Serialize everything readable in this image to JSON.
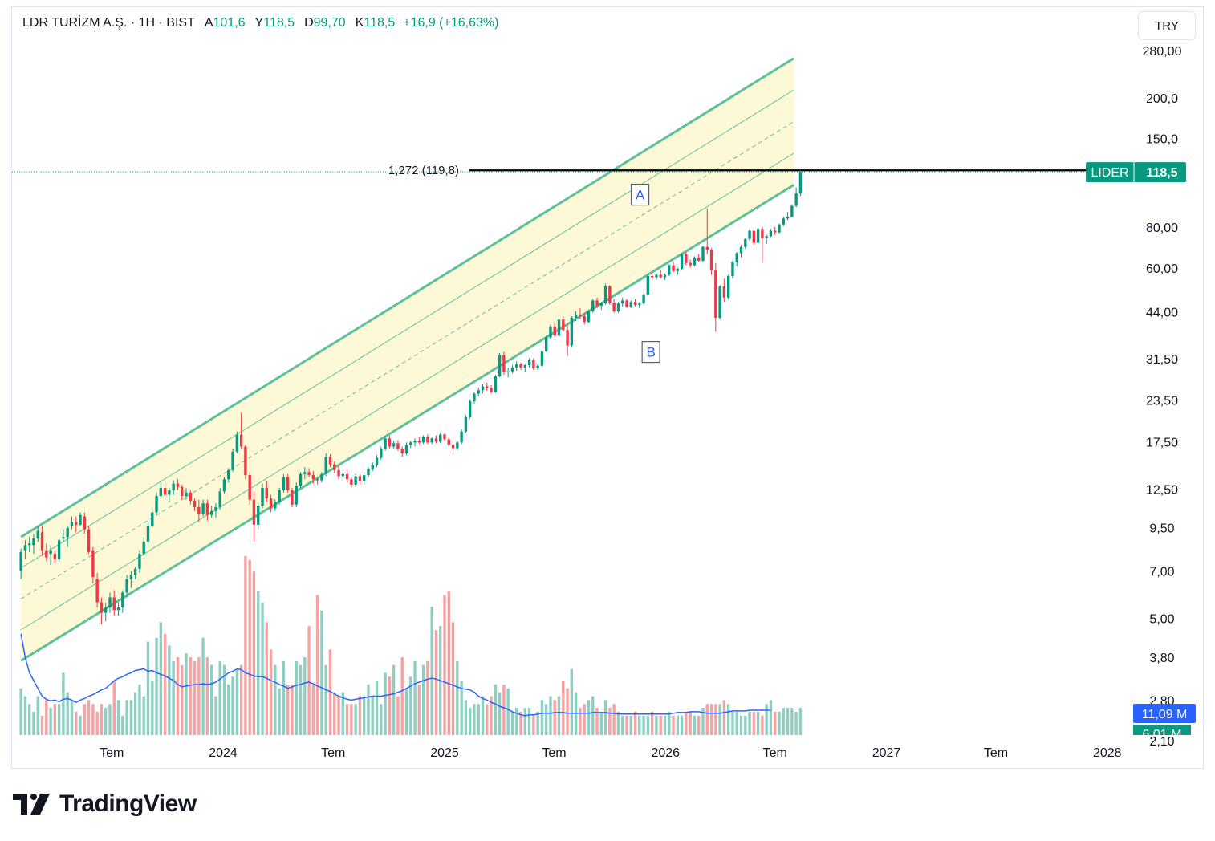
{
  "header": {
    "symbol": "LDR TURİZM A.Ş. · 1H · BIST",
    "open_label": "A",
    "open": "101,6",
    "high_label": "Y",
    "high": "118,5",
    "low_label": "D",
    "low": "99,70",
    "close_label": "K",
    "close": "118,5",
    "change": "+16,9 (+16,63%)",
    "currency": "TRY"
  },
  "price_tag": {
    "label": "LIDER",
    "value": "118,5",
    "color": "#089981"
  },
  "fib_label": "1,272 (119,8)",
  "annotations": {
    "a": "A",
    "b": "B"
  },
  "volume_tags": {
    "ma": "11,09 M",
    "volume": "6,01 M"
  },
  "brand": "TradingView",
  "colors": {
    "up": "#089981",
    "down": "#f23645",
    "channel_line": "#5fc19b",
    "channel_fill": "#fdf8d5",
    "volume_up": "#8fcfc2",
    "volume_down": "#f5a3a3",
    "volume_ma": "#2962ff",
    "text_blue": "#2962ff"
  },
  "chart_data": {
    "type": "candlestick",
    "timeframe": "1 week",
    "price_scale": "log",
    "y_ticks": [
      "280,00",
      "200,0",
      "150,0",
      "80,00",
      "60,00",
      "44,00",
      "31,50",
      "23,50",
      "17,50",
      "12,50",
      "9,50",
      "7,00",
      "5,00",
      "3,80",
      "2,80",
      "2,10"
    ],
    "y_tick_values": [
      280,
      200,
      150,
      80,
      60,
      44,
      31.5,
      23.5,
      17.5,
      12.5,
      9.5,
      7,
      5,
      3.8,
      2.8,
      2.1
    ],
    "x_ticks": [
      "Tem",
      "2024",
      "Tem",
      "2025",
      "Tem",
      "2026",
      "Tem",
      "2027",
      "Tem",
      "2028"
    ],
    "x_tick_dates": [
      "2023-07-01",
      "2024-01-01",
      "2024-07-01",
      "2025-01-01",
      "2025-07-01",
      "2026-01-01",
      "2026-07-01",
      "2027-01-01",
      "2027-07-01",
      "2028-01-01"
    ],
    "start_date": "2023-02-01",
    "candles": [
      [
        7.0,
        8.2,
        6.6,
        8.0
      ],
      [
        8.1,
        8.7,
        7.6,
        8.4
      ],
      [
        8.4,
        8.9,
        8.0,
        8.5
      ],
      [
        8.4,
        9.1,
        7.9,
        8.8
      ],
      [
        8.8,
        9.6,
        8.6,
        9.3
      ],
      [
        9.2,
        9.6,
        7.8,
        8.1
      ],
      [
        8.1,
        8.5,
        7.5,
        7.7
      ],
      [
        7.9,
        8.4,
        7.3,
        8.1
      ],
      [
        7.9,
        8.1,
        7.4,
        7.6
      ],
      [
        7.6,
        8.9,
        7.5,
        8.7
      ],
      [
        8.8,
        9.4,
        8.6,
        8.9
      ],
      [
        8.9,
        9.6,
        8.3,
        9.5
      ],
      [
        9.6,
        10.3,
        9.4,
        9.9
      ],
      [
        9.9,
        10.3,
        9.2,
        9.7
      ],
      [
        9.7,
        10.6,
        9.6,
        10.4
      ],
      [
        10.3,
        10.6,
        9.1,
        9.4
      ],
      [
        9.4,
        9.6,
        7.9,
        8.0
      ],
      [
        8.1,
        8.3,
        6.4,
        6.7
      ],
      [
        6.6,
        6.9,
        5.4,
        5.6
      ],
      [
        5.6,
        5.8,
        4.8,
        5.2
      ],
      [
        5.2,
        5.6,
        4.9,
        5.4
      ],
      [
        5.4,
        6.0,
        5.2,
        5.8
      ],
      [
        5.8,
        6.1,
        5.1,
        5.3
      ],
      [
        5.3,
        5.6,
        5.1,
        5.4
      ],
      [
        5.4,
        6.1,
        5.2,
        6.0
      ],
      [
        6.0,
        6.8,
        5.8,
        6.6
      ],
      [
        6.6,
        7.0,
        6.2,
        6.8
      ],
      [
        6.8,
        7.2,
        6.6,
        7.1
      ],
      [
        7.1,
        8.1,
        6.9,
        7.9
      ],
      [
        7.9,
        8.9,
        7.8,
        8.6
      ],
      [
        8.6,
        9.9,
        8.5,
        9.6
      ],
      [
        9.6,
        10.9,
        9.5,
        10.6
      ],
      [
        10.6,
        12.2,
        10.4,
        11.9
      ],
      [
        11.9,
        13.1,
        11.7,
        12.6
      ],
      [
        12.6,
        13.2,
        11.6,
        12.0
      ],
      [
        12.0,
        12.6,
        11.4,
        12.4
      ],
      [
        12.4,
        13.3,
        12.0,
        13.0
      ],
      [
        13.0,
        13.4,
        12.4,
        12.7
      ],
      [
        12.7,
        12.9,
        11.6,
        11.9
      ],
      [
        11.9,
        12.6,
        11.6,
        12.2
      ],
      [
        12.2,
        12.4,
        11.2,
        11.5
      ],
      [
        11.5,
        11.7,
        10.7,
        11.0
      ],
      [
        11.0,
        11.6,
        9.9,
        10.5
      ],
      [
        10.5,
        11.6,
        10.3,
        11.3
      ],
      [
        11.3,
        11.6,
        10.0,
        10.4
      ],
      [
        10.4,
        11.1,
        10.2,
        10.7
      ],
      [
        10.7,
        11.3,
        10.2,
        11.0
      ],
      [
        11.0,
        12.6,
        10.8,
        12.3
      ],
      [
        12.3,
        13.6,
        12.1,
        13.4
      ],
      [
        13.4,
        14.5,
        13.1,
        14.3
      ],
      [
        14.3,
        16.6,
        14.1,
        16.3
      ],
      [
        16.3,
        18.8,
        16.1,
        18.4
      ],
      [
        18.4,
        21.5,
        16.6,
        16.9
      ],
      [
        16.9,
        17.1,
        13.4,
        13.8
      ],
      [
        13.8,
        14.1,
        11.2,
        11.6
      ],
      [
        11.6,
        12.3,
        8.6,
        9.7
      ],
      [
        9.7,
        11.3,
        9.4,
        11.1
      ],
      [
        11.1,
        13.0,
        10.9,
        12.6
      ],
      [
        12.6,
        13.2,
        11.4,
        11.7
      ],
      [
        11.7,
        12.0,
        10.6,
        10.9
      ],
      [
        10.9,
        11.6,
        10.7,
        11.4
      ],
      [
        11.4,
        12.6,
        11.2,
        12.4
      ],
      [
        12.4,
        13.9,
        12.2,
        13.6
      ],
      [
        13.6,
        13.9,
        12.2,
        12.4
      ],
      [
        12.4,
        12.6,
        11.0,
        11.2
      ],
      [
        11.2,
        13.1,
        11.0,
        12.8
      ],
      [
        12.8,
        14.1,
        12.6,
        13.9
      ],
      [
        13.9,
        14.6,
        13.4,
        14.1
      ],
      [
        14.1,
        14.5,
        13.6,
        13.8
      ],
      [
        13.8,
        14.2,
        13.0,
        13.4
      ],
      [
        13.4,
        13.6,
        12.9,
        13.3
      ],
      [
        13.3,
        14.1,
        13.1,
        13.9
      ],
      [
        13.9,
        16.1,
        13.7,
        15.7
      ],
      [
        15.7,
        16.0,
        14.6,
        14.9
      ],
      [
        14.9,
        15.2,
        14.0,
        14.3
      ],
      [
        14.3,
        14.7,
        13.4,
        13.7
      ],
      [
        13.7,
        14.1,
        13.2,
        13.9
      ],
      [
        13.9,
        14.3,
        13.1,
        13.4
      ],
      [
        13.4,
        13.6,
        12.6,
        12.9
      ],
      [
        12.9,
        13.9,
        12.7,
        13.7
      ],
      [
        13.7,
        13.9,
        12.9,
        13.2
      ],
      [
        13.2,
        14.1,
        12.9,
        13.8
      ],
      [
        13.8,
        14.6,
        13.6,
        14.4
      ],
      [
        14.4,
        15.1,
        14.2,
        14.8
      ],
      [
        14.8,
        15.9,
        14.6,
        15.6
      ],
      [
        15.6,
        16.9,
        15.4,
        16.6
      ],
      [
        16.6,
        18.2,
        16.4,
        17.9
      ],
      [
        17.9,
        18.3,
        16.6,
        16.9
      ],
      [
        16.9,
        17.6,
        16.6,
        17.3
      ],
      [
        17.3,
        17.7,
        16.4,
        16.6
      ],
      [
        16.6,
        16.9,
        15.7,
        16.1
      ],
      [
        16.1,
        17.4,
        15.9,
        17.1
      ],
      [
        17.1,
        17.6,
        16.7,
        17.4
      ],
      [
        17.4,
        17.9,
        16.9,
        17.6
      ],
      [
        17.6,
        18.1,
        17.2,
        17.4
      ],
      [
        17.4,
        18.3,
        17.2,
        18.1
      ],
      [
        18.1,
        18.4,
        17.2,
        17.4
      ],
      [
        17.4,
        18.1,
        17.2,
        17.9
      ],
      [
        17.9,
        18.3,
        17.3,
        17.5
      ],
      [
        17.5,
        18.6,
        17.3,
        18.4
      ],
      [
        18.4,
        18.6,
        17.6,
        17.8
      ],
      [
        17.8,
        18.1,
        16.9,
        17.1
      ],
      [
        17.1,
        17.3,
        16.4,
        16.7
      ],
      [
        16.7,
        17.6,
        16.5,
        17.4
      ],
      [
        17.4,
        19.1,
        17.2,
        18.8
      ],
      [
        18.8,
        21.1,
        18.6,
        20.8
      ],
      [
        20.8,
        23.6,
        20.6,
        23.3
      ],
      [
        23.3,
        24.9,
        22.9,
        24.6
      ],
      [
        24.6,
        25.7,
        24.1,
        25.2
      ],
      [
        25.2,
        26.3,
        24.6,
        25.9
      ],
      [
        25.9,
        26.6,
        25.1,
        25.6
      ],
      [
        25.6,
        26.1,
        24.6,
        24.9
      ],
      [
        24.9,
        28.1,
        24.7,
        27.8
      ],
      [
        27.8,
        32.8,
        27.6,
        32.3
      ],
      [
        32.3,
        33.1,
        28.1,
        28.6
      ],
      [
        28.6,
        29.6,
        27.6,
        28.8
      ],
      [
        28.8,
        30.1,
        28.4,
        29.6
      ],
      [
        29.6,
        30.9,
        28.9,
        30.3
      ],
      [
        30.3,
        30.6,
        29.1,
        29.6
      ],
      [
        29.6,
        30.4,
        28.6,
        30.1
      ],
      [
        30.1,
        31.6,
        29.6,
        31.2
      ],
      [
        31.2,
        31.6,
        29.1,
        29.4
      ],
      [
        29.4,
        30.3,
        29.1,
        30.0
      ],
      [
        30.0,
        33.6,
        29.8,
        33.2
      ],
      [
        33.2,
        37.1,
        33.0,
        36.6
      ],
      [
        36.6,
        40.1,
        36.2,
        39.6
      ],
      [
        39.6,
        41.1,
        36.6,
        37.1
      ],
      [
        37.1,
        42.1,
        36.9,
        41.6
      ],
      [
        41.6,
        42.6,
        38.1,
        38.6
      ],
      [
        38.6,
        40.1,
        32.1,
        34.6
      ],
      [
        34.6,
        42.6,
        34.2,
        42.1
      ],
      [
        42.1,
        44.1,
        41.1,
        43.1
      ],
      [
        43.1,
        45.1,
        41.6,
        42.6
      ],
      [
        42.6,
        43.6,
        40.1,
        40.9
      ],
      [
        40.9,
        44.6,
        40.6,
        44.1
      ],
      [
        44.1,
        48.1,
        43.6,
        47.6
      ],
      [
        47.6,
        48.6,
        45.1,
        45.9
      ],
      [
        45.9,
        47.1,
        44.6,
        46.6
      ],
      [
        46.6,
        53.6,
        46.2,
        52.6
      ],
      [
        52.6,
        53.1,
        46.1,
        46.9
      ],
      [
        46.9,
        48.1,
        43.6,
        44.1
      ],
      [
        44.1,
        47.1,
        43.6,
        46.6
      ],
      [
        46.6,
        48.6,
        45.6,
        47.6
      ],
      [
        47.6,
        48.1,
        45.1,
        45.6
      ],
      [
        45.6,
        47.6,
        45.1,
        47.1
      ],
      [
        47.1,
        48.1,
        45.6,
        46.1
      ],
      [
        46.1,
        47.1,
        45.1,
        46.6
      ],
      [
        46.6,
        50.1,
        46.2,
        49.6
      ],
      [
        49.6,
        57.1,
        49.2,
        56.6
      ],
      [
        56.6,
        58.1,
        55.1,
        56.1
      ],
      [
        56.1,
        57.6,
        55.1,
        57.1
      ],
      [
        57.1,
        59.1,
        55.6,
        56.1
      ],
      [
        56.1,
        57.6,
        55.1,
        57.1
      ],
      [
        57.1,
        61.6,
        56.6,
        61.1
      ],
      [
        61.1,
        62.6,
        58.1,
        58.6
      ],
      [
        58.6,
        60.1,
        57.1,
        59.6
      ],
      [
        59.6,
        66.6,
        59.2,
        66.1
      ],
      [
        66.1,
        67.1,
        61.1,
        62.1
      ],
      [
        62.1,
        63.6,
        60.1,
        61.1
      ],
      [
        61.1,
        65.1,
        60.6,
        64.6
      ],
      [
        64.6,
        66.1,
        62.6,
        63.1
      ],
      [
        63.1,
        70.1,
        62.6,
        69.6
      ],
      [
        69.6,
        91.5,
        66.1,
        68.1
      ],
      [
        68.1,
        69.1,
        57.1,
        59.1
      ],
      [
        59.1,
        62.1,
        38.1,
        42.1
      ],
      [
        42.1,
        53.1,
        41.6,
        52.6
      ],
      [
        52.6,
        55.6,
        47.1,
        48.6
      ],
      [
        48.6,
        57.1,
        48.1,
        56.6
      ],
      [
        56.6,
        63.1,
        55.6,
        62.6
      ],
      [
        62.6,
        67.1,
        60.6,
        66.6
      ],
      [
        66.6,
        70.6,
        64.6,
        69.6
      ],
      [
        69.6,
        74.1,
        68.6,
        73.6
      ],
      [
        73.6,
        79.1,
        72.6,
        78.1
      ],
      [
        78.1,
        80.1,
        70.6,
        71.6
      ],
      [
        71.6,
        79.6,
        71.1,
        79.1
      ],
      [
        79.1,
        80.1,
        62.1,
        74.1
      ],
      [
        74.1,
        76.1,
        71.1,
        75.1
      ],
      [
        75.1,
        79.1,
        74.6,
        78.1
      ],
      [
        78.1,
        80.1,
        75.6,
        77.1
      ],
      [
        77.1,
        82.1,
        76.6,
        81.6
      ],
      [
        81.6,
        86.1,
        80.6,
        85.1
      ],
      [
        85.1,
        89.1,
        84.1,
        86.1
      ],
      [
        86.1,
        94.1,
        85.6,
        93.1
      ],
      [
        93.1,
        106.0,
        92.1,
        101.6
      ],
      [
        101.6,
        118.5,
        99.7,
        118.5
      ]
    ],
    "volume_scale_values": [
      6,
      5,
      4,
      3,
      5,
      2.5,
      4.5,
      3.5,
      4,
      4,
      8,
      5.5,
      4.5,
      3,
      2.5,
      4,
      4.5,
      4,
      3,
      4,
      3.5,
      4,
      7,
      4.5,
      2.5,
      4.5,
      4.5,
      5.5,
      6.5,
      5,
      12,
      7,
      12.5,
      14.5,
      13,
      11.5,
      9.5,
      10,
      9,
      10.5,
      10,
      9.5,
      10,
      12.5,
      10,
      9,
      5,
      9.5,
      9,
      6.5,
      7.5,
      8.5,
      9,
      23,
      22.5,
      21,
      18.5,
      17,
      14.5,
      11,
      9,
      6,
      9.5,
      6.5,
      6.5,
      9.5,
      9,
      10,
      14,
      6.5,
      18,
      16,
      9,
      11,
      5.5,
      5,
      5.5,
      4,
      4,
      4,
      5,
      5,
      6.5,
      5,
      7,
      4,
      8,
      7.5,
      9,
      5,
      10,
      6,
      7.5,
      9.5,
      6.5,
      9,
      9.5,
      16.5,
      13.5,
      14,
      18,
      18.5,
      14.5,
      9.5,
      7,
      4.5,
      3.5,
      4,
      4,
      5,
      4,
      5,
      6.5,
      5.5,
      6.5,
      6,
      3,
      3.5,
      3,
      3.5,
      3.5,
      2.5,
      3,
      4.5,
      4,
      5,
      4.5,
      5,
      7,
      6,
      8.5,
      5.5,
      3.5,
      4,
      4.5,
      5,
      3.5,
      3,
      4.5,
      3.5,
      4,
      3,
      2.5,
      2.5,
      2.5,
      3,
      2.5,
      2.5,
      2.5,
      3,
      2.5,
      2.5,
      2.5,
      3,
      2.5,
      2.5,
      2.5,
      3,
      3,
      2.5,
      2.5,
      3.5,
      4,
      4,
      4,
      4,
      4.5,
      4,
      3,
      3,
      2.5,
      2.5,
      3,
      3,
      3,
      2.5,
      4,
      4.5,
      3,
      3,
      3.5,
      3.5,
      3.5,
      3,
      3.5
    ],
    "volume_ma": [
      13,
      10,
      8,
      7,
      6,
      5,
      4.6,
      4.4,
      4.5,
      4.3,
      4.6,
      4.7,
      4.5,
      4.2,
      4.5,
      4.7,
      5,
      5.2,
      5.5,
      5.8,
      6,
      6.5,
      7,
      7.3,
      7.5,
      7.8,
      8,
      8.3,
      8.4,
      8.5,
      8.2,
      8.3,
      8,
      7.8,
      7.6,
      7.3,
      7,
      6.5,
      6.2,
      6.3,
      6.4,
      6.5,
      6.5,
      6.6,
      6.5,
      6.6,
      6.8,
      7.2,
      7.6,
      8,
      8.2,
      8.5,
      8.4,
      8,
      7.8,
      7.6,
      7.5,
      7.5,
      7.3,
      7,
      6.8,
      6.5,
      6.3,
      6,
      6.2,
      6.4,
      6.5,
      6.7,
      6.8,
      6.6,
      6.3,
      6.1,
      5.8,
      5.6,
      5.3,
      5,
      4.8,
      4.6,
      4.5,
      4.6,
      4.7,
      4.8,
      4.9,
      5,
      5,
      5,
      5.1,
      5.2,
      5.3,
      5.5,
      5.7,
      6,
      6.3,
      6.6,
      6.8,
      7,
      7.2,
      7.3,
      7.2,
      7,
      6.8,
      6.6,
      6.4,
      6.2,
      6,
      5.9,
      5.8,
      5.5,
      5,
      4.7,
      4.5,
      4.2,
      4,
      3.7,
      3.5,
      3.3,
      3,
      2.8,
      2.6,
      2.5,
      2.6,
      2.6,
      2.7,
      2.8,
      2.8,
      2.8,
      2.9,
      2.9,
      2.9,
      2.8,
      2.8,
      2.8,
      2.8,
      2.8,
      2.8,
      2.9,
      2.9,
      2.9,
      2.9,
      2.8,
      2.8,
      2.7,
      2.7,
      2.7,
      2.7,
      2.7,
      2.7,
      2.7,
      2.7,
      2.7,
      2.7,
      2.7,
      2.7,
      2.7,
      2.8,
      2.9,
      2.9,
      2.9,
      3,
      3,
      3,
      2.9,
      2.8,
      2.8,
      2.8,
      2.8,
      2.9,
      3,
      3.1,
      3.1,
      3.1,
      3.1,
      3.2,
      3.2,
      3.2,
      3.2,
      3.2,
      3.2
    ],
    "channel": {
      "lower_start": [
        "2023-02-01",
        3.7
      ],
      "lower_end": [
        "2026-08-01",
        108
      ],
      "upper_start": [
        "2023-02-01",
        8.9
      ],
      "upper_end": [
        "2026-08-01",
        265
      ]
    },
    "fib_extension": {
      "level": "1,272",
      "price": 119.8,
      "start": "2024-09-01"
    },
    "last_price": 118.5,
    "points": [
      {
        "label": "A",
        "date": "2025-11-20",
        "price": 91.5
      },
      {
        "label": "B",
        "date": "2025-12-08",
        "price": 38.1
      }
    ]
  }
}
